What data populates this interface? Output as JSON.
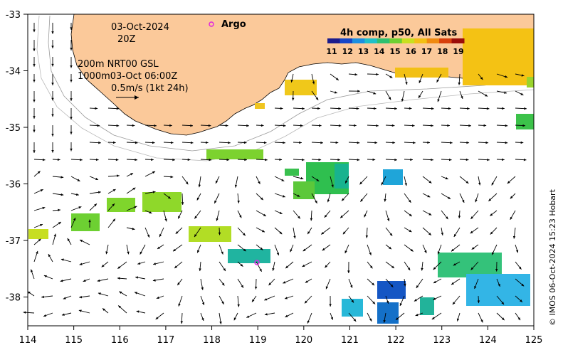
{
  "map": {
    "date": "03-Oct-2024",
    "time": "20Z",
    "layer_line1": "200m  NRT00 GSL",
    "layer_line2": "1000m03-Oct 06:00Z",
    "scale_label": "0.5m/s (1kt 24h)",
    "argo_label": "Argo",
    "colorbar_title": "4h comp, p50, All Sats",
    "colorbar_ticks": [
      "11",
      "12",
      "13",
      "14",
      "15",
      "16",
      "17",
      "18",
      "19"
    ],
    "x_ticks": [
      "114",
      "115",
      "116",
      "117",
      "118",
      "119",
      "120",
      "121",
      "122",
      "123",
      "124",
      "125"
    ],
    "y_ticks": [
      "-33",
      "-34",
      "-35",
      "-36",
      "-37",
      "-38"
    ],
    "copyright": "© IMOS 06-Oct-2024 15:23 Hobart",
    "colors": {
      "land": "#fbc99a",
      "argo_marker": "#e020e0",
      "arrow": "#000000"
    }
  }
}
